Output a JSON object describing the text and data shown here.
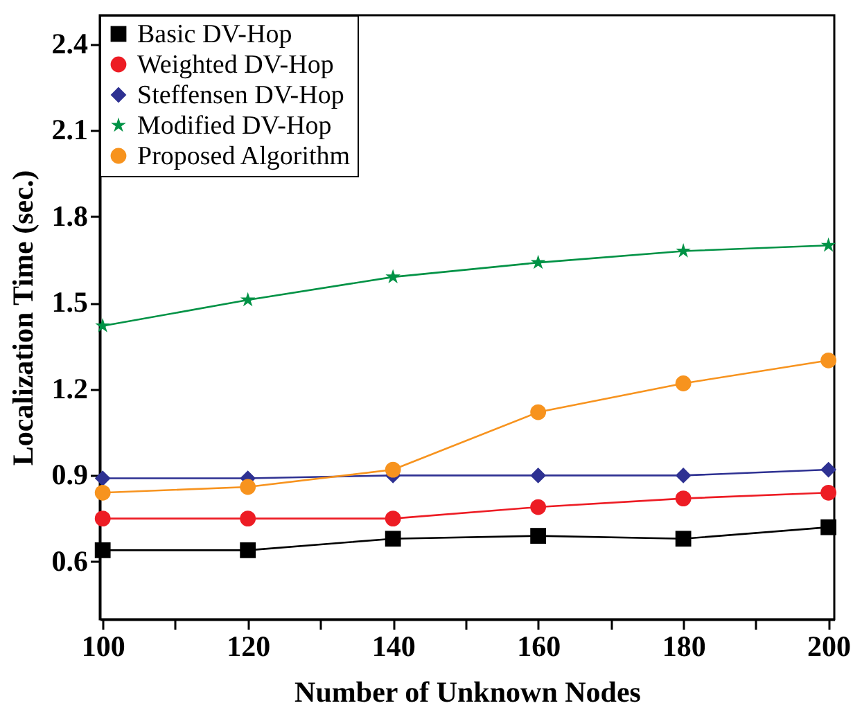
{
  "chart_data": {
    "type": "line",
    "xlabel": "Number of Unknown Nodes",
    "ylabel": "Localization Time (sec.)",
    "x": [
      100,
      120,
      140,
      160,
      180,
      200
    ],
    "xlim": [
      99.6,
      200.8
    ],
    "ylim": [
      0.4,
      2.5
    ],
    "xticks": [
      100,
      {
        "value": 110,
        "label": null
      },
      120,
      {
        "value": 130,
        "label": null
      },
      140,
      {
        "value": 150,
        "label": null
      },
      160,
      {
        "value": 170,
        "label": null
      },
      180,
      {
        "value": 190,
        "label": null
      },
      200
    ],
    "yticks": [
      0.6,
      0.9,
      1.2,
      1.5,
      1.8,
      2.1,
      2.4
    ],
    "grid": false,
    "legend": "top left",
    "line_style": "solid",
    "series": [
      {
        "name": "Basic DV-Hop",
        "color": "#000000",
        "marker": "square",
        "values": [
          0.64,
          0.64,
          0.68,
          0.69,
          0.68,
          0.72
        ]
      },
      {
        "name": "Weighted DV-Hop",
        "color": "#ed1c24",
        "marker": "circle",
        "values": [
          0.75,
          0.75,
          0.75,
          0.79,
          0.82,
          0.84
        ]
      },
      {
        "name": "Steffensen DV-Hop",
        "color": "#2e3192",
        "marker": "diamond",
        "values": [
          0.89,
          0.89,
          0.9,
          0.9,
          0.9,
          0.92
        ]
      },
      {
        "name": "Modified DV-Hop",
        "color": "#009245",
        "marker": "star",
        "values": [
          1.42,
          1.51,
          1.59,
          1.64,
          1.68,
          1.7
        ]
      },
      {
        "name": "Proposed Algorithm",
        "color": "#f7931e",
        "marker": "circle",
        "values": [
          0.84,
          0.86,
          0.92,
          1.12,
          1.22,
          1.3
        ]
      }
    ]
  }
}
